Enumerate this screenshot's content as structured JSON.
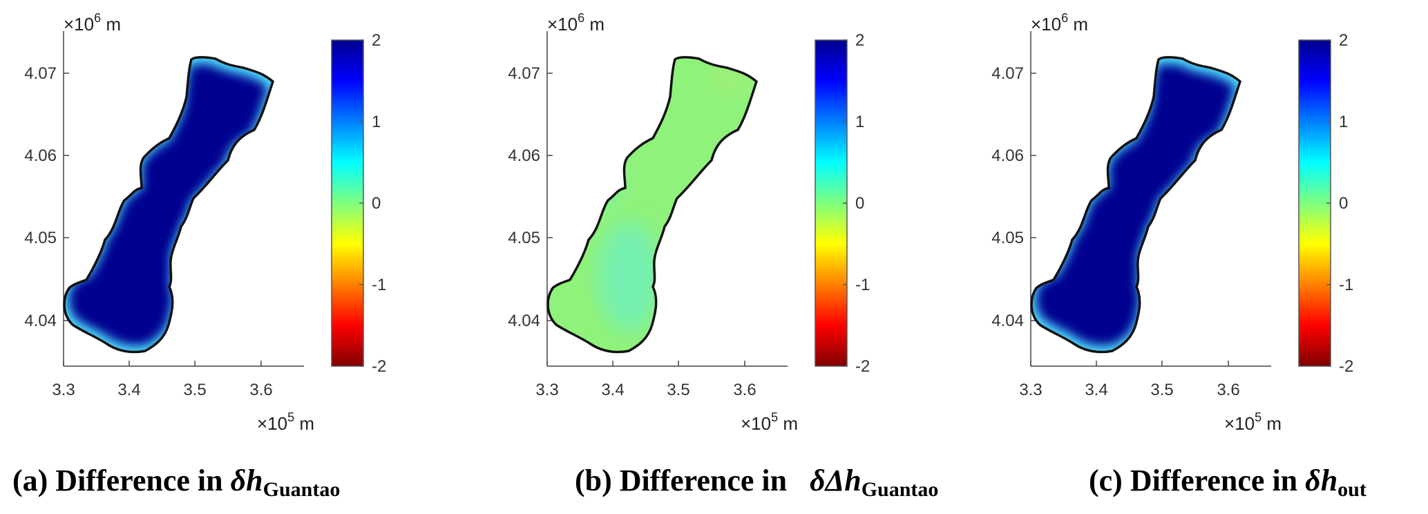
{
  "chart_data": [
    {
      "type": "heatmap",
      "panel": "a",
      "caption": {
        "prefix": "(a) Difference in ",
        "symbol": "δh",
        "subscript": "Guantao"
      },
      "x_ticks": [
        "3.3",
        "3.4",
        "3.5",
        "3.6"
      ],
      "y_ticks": [
        "4.07",
        "4.06",
        "4.05",
        "4.04"
      ],
      "x_exponent": {
        "base": "×10",
        "power": "5",
        "unit": " m"
      },
      "y_exponent": {
        "base": "×10",
        "power": "6",
        "unit": " m"
      },
      "colorbar": {
        "ticks": [
          "2",
          "1",
          "0",
          "-1",
          "-2"
        ],
        "range": [
          -2,
          2
        ],
        "colormap": "jet"
      },
      "field": {
        "interior_value": 2.0,
        "boundary_value": 0.3,
        "boundary_gradient": true
      },
      "colors": {
        "interior": "#00008f",
        "edge": "#4fe3ff"
      }
    },
    {
      "type": "heatmap",
      "panel": "b",
      "caption": {
        "prefix": "(b) Difference in ",
        "symbol": "δΔh",
        "subscript": "Guantao"
      },
      "x_ticks": [
        "3.3",
        "3.4",
        "3.5",
        "3.6"
      ],
      "y_ticks": [
        "4.07",
        "4.06",
        "4.05",
        "4.04"
      ],
      "x_exponent": {
        "base": "×10",
        "power": "5",
        "unit": " m"
      },
      "y_exponent": {
        "base": "×10",
        "power": "6",
        "unit": " m"
      },
      "colorbar": {
        "ticks": [
          "2",
          "1",
          "0",
          "-1",
          "-2"
        ],
        "range": [
          -2,
          2
        ],
        "colormap": "jet"
      },
      "field": {
        "interior_value": 0.2,
        "boundary_value": 0.2,
        "boundary_gradient": false
      },
      "colors": {
        "interior": "#8ff27a",
        "patch": "#7ef2a6"
      }
    },
    {
      "type": "heatmap",
      "panel": "c",
      "caption": {
        "prefix": "(c) Difference in ",
        "symbol": "δh",
        "subscript": "out"
      },
      "x_ticks": [
        "3.3",
        "3.4",
        "3.5",
        "3.6"
      ],
      "y_ticks": [
        "4.07",
        "4.06",
        "4.05",
        "4.04"
      ],
      "x_exponent": {
        "base": "×10",
        "power": "5",
        "unit": " m"
      },
      "y_exponent": {
        "base": "×10",
        "power": "6",
        "unit": " m"
      },
      "colorbar": {
        "ticks": [
          "2",
          "1",
          "0",
          "-1",
          "-2"
        ],
        "range": [
          -2,
          2
        ],
        "colormap": "jet"
      },
      "field": {
        "interior_value": 2.0,
        "boundary_value": 0.3,
        "boundary_gradient": true
      },
      "colors": {
        "interior": "#00008f",
        "edge": "#4fe3ff"
      }
    }
  ]
}
